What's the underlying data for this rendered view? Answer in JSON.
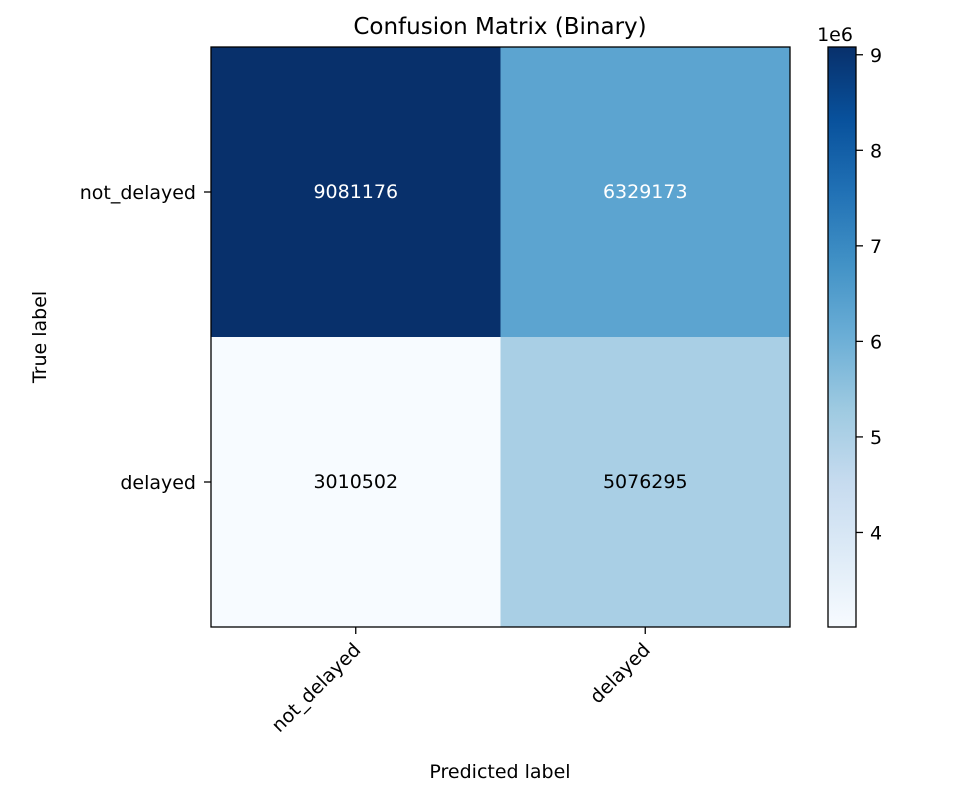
{
  "chart_data": {
    "type": "heatmap",
    "title": "Confusion Matrix (Binary)",
    "xlabel": "Predicted label",
    "ylabel": "True label",
    "x_categories": [
      "not_delayed",
      "delayed"
    ],
    "y_categories": [
      "not_delayed",
      "delayed"
    ],
    "values": [
      [
        9081176,
        6329173
      ],
      [
        3010502,
        5076295
      ]
    ],
    "colormap": "Blues",
    "colorbar": {
      "range": [
        3010502,
        9081176
      ],
      "ticks": [
        4,
        5,
        6,
        7,
        8,
        9
      ],
      "tick_labels": [
        "4",
        "5",
        "6",
        "7",
        "8",
        "9"
      ],
      "multiplier_label": "1e6"
    }
  }
}
